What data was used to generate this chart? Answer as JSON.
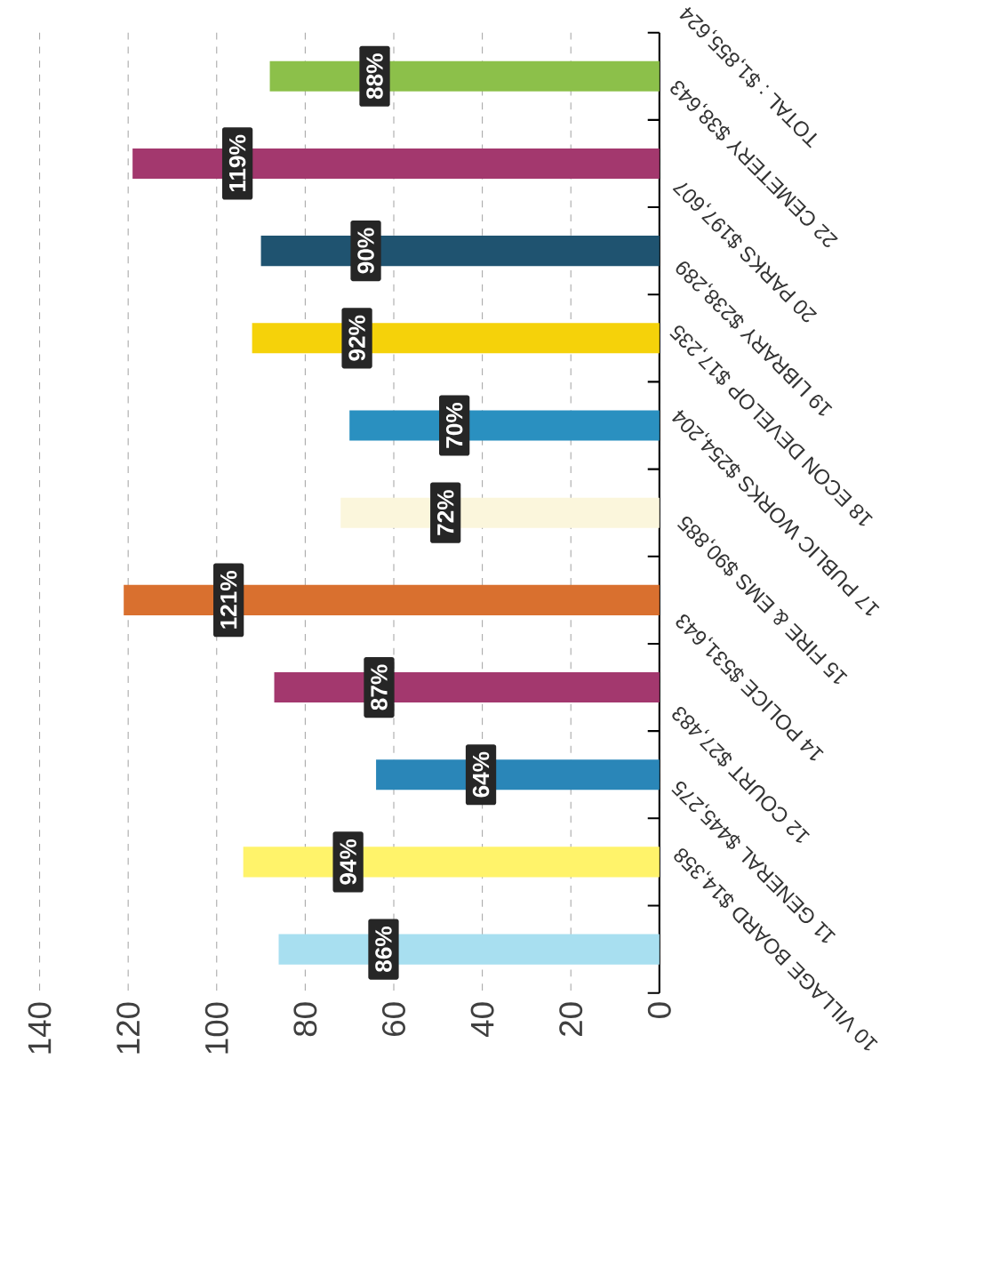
{
  "chart_data": {
    "type": "bar",
    "orientation": "horizontal",
    "categories": [
      "TOTAL : $1,855,624",
      "22 CEMETERY $38,643",
      "20 PARKS $197,607",
      "19 LIBRARY $238,289",
      "18 ECON DEVELOP $17,235",
      "17 PUBLIC WORKS $254,204",
      "15 FIRE & EMS $90,885",
      "14 POLICE $531,643",
      "12 COURT $27,483",
      "11 GENERAL $445,275",
      "10 VILLAGE BOARD $14,358"
    ],
    "values": [
      88,
      119,
      90,
      92,
      70,
      72,
      121,
      87,
      64,
      94,
      86
    ],
    "value_labels": [
      "88%",
      "119%",
      "90%",
      "92%",
      "70%",
      "72%",
      "121%",
      "87%",
      "64%",
      "94%",
      "86%"
    ],
    "colors": [
      "#8cc04a",
      "#a3386e",
      "#1f5370",
      "#f5d20a",
      "#2a90c0",
      "#fbf6dc",
      "#d9702f",
      "#a3386e",
      "#2a86b8",
      "#fff36a",
      "#a8dff0"
    ],
    "xlim": [
      140,
      0
    ],
    "xticks": [
      0,
      20,
      40,
      60,
      80,
      100,
      120,
      140
    ],
    "grid": true
  }
}
